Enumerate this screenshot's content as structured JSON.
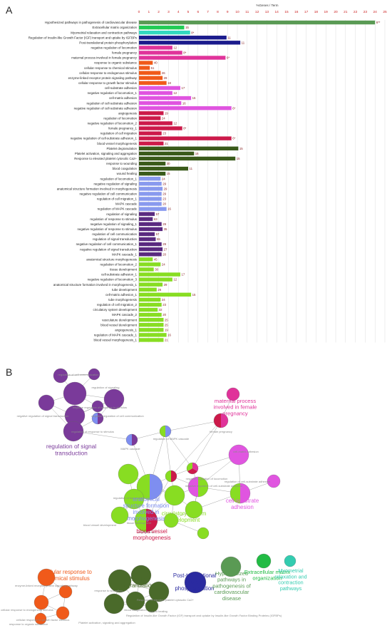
{
  "panel_a_label": "A",
  "panel_b_label": "B",
  "chart_data": {
    "type": "bar",
    "orientation": "horizontal",
    "xlabel": "%Genes / Term",
    "xlim": [
      0,
      25
    ],
    "xticks": [
      0,
      1,
      2,
      3,
      4,
      5,
      6,
      7,
      8,
      9,
      10,
      11,
      12,
      13,
      14,
      15,
      16,
      17,
      18,
      19,
      20,
      21,
      22,
      23,
      24,
      25
    ],
    "grid": true,
    "bars": [
      {
        "label": "Hypothesized pathways in pathogenesis of cardiovascular disease",
        "value": 24,
        "count": "6**",
        "color": "#5a9a54"
      },
      {
        "label": "Extracellular matrix organization",
        "value": 4.6,
        "count": "15",
        "color": "#22cc55"
      },
      {
        "label": "Myometrial relaxation and contraction pathways",
        "value": 5.2,
        "count": "8*",
        "color": "#33d9c0"
      },
      {
        "label": "Regulation of Insulin-like Growth Factor (IGF) transport and uptake by IGFBPs",
        "value": 8.9,
        "count": "11",
        "color": "#1a1a8c"
      },
      {
        "label": "Post-translational protein phosphorylation",
        "value": 10.3,
        "count": "11",
        "color": "#1a1a8c"
      },
      {
        "label": "negative regulation of locomotion",
        "value": 3.4,
        "count": "12",
        "color": "#e0339a"
      },
      {
        "label": "female pregnancy",
        "value": 4.4,
        "count": "8*",
        "color": "#e0339a"
      },
      {
        "label": "maternal process involved in female pregnancy",
        "value": 8.8,
        "count": "6*",
        "color": "#e0339a"
      },
      {
        "label": "response to organic substance",
        "value": 1.4,
        "count": "40",
        "color": "#f05a1a"
      },
      {
        "label": "cellular response to chemical stimulus",
        "value": 1.1,
        "count": "51",
        "color": "#f05a1a"
      },
      {
        "label": "cellular response to endogenous stimulus",
        "value": 2.2,
        "count": "26",
        "color": "#f05a1a"
      },
      {
        "label": "enzyme-linked receptor protein signaling pathway",
        "value": 2.4,
        "count": "29",
        "color": "#f05a1a"
      },
      {
        "label": "cellular response to growth factor stimulus",
        "value": 2.8,
        "count": "18",
        "color": "#f05a1a"
      },
      {
        "label": "cell-substrate adhesion",
        "value": 4.2,
        "count": "17",
        "color": "#e055e0"
      },
      {
        "label": "negative regulation of locomotion_1",
        "value": 3.4,
        "count": "12",
        "color": "#e055e0"
      },
      {
        "label": "cell-matrix adhesion",
        "value": 5.3,
        "count": "15",
        "color": "#e055e0"
      },
      {
        "label": "regulation of cell-substrate adhesion",
        "value": 4.3,
        "count": "16",
        "color": "#e055e0"
      },
      {
        "label": "negative regulation of cell-substrate adhesion",
        "value": 9.4,
        "count": "6*",
        "color": "#e055e0"
      },
      {
        "label": "angiogenesis",
        "value": 2.5,
        "count": "19",
        "color": "#cc1a4a"
      },
      {
        "label": "regulation of locomotion",
        "value": 2.2,
        "count": "24",
        "color": "#cc1a4a"
      },
      {
        "label": "negative regulation of locomotion_2",
        "value": 3.4,
        "count": "12",
        "color": "#cc1a4a"
      },
      {
        "label": "female pregnancy_1",
        "value": 4.4,
        "count": "8*",
        "color": "#cc1a4a"
      },
      {
        "label": "regulation of cell migration",
        "value": 2.3,
        "count": "23",
        "color": "#cc1a4a"
      },
      {
        "label": "negative regulation of cell-substrate adhesion_1",
        "value": 9.4,
        "count": "6*",
        "color": "#cc1a4a"
      },
      {
        "label": "blood vessel morphogenesis",
        "value": 2.5,
        "count": "21",
        "color": "#cc1a4a"
      },
      {
        "label": "Platelet degranulation",
        "value": 10.1,
        "count": "15",
        "color": "#3a5a1a"
      },
      {
        "label": "Platelet activation, signaling and aggregation",
        "value": 5.6,
        "count": "16",
        "color": "#3a5a1a"
      },
      {
        "label": "Response to elevated platelet cytosolic Ca2+",
        "value": 9.8,
        "count": "15",
        "color": "#3a5a1a"
      },
      {
        "label": "response to wounding",
        "value": 2.7,
        "count": "30",
        "color": "#3a5a1a"
      },
      {
        "label": "blood coagulation",
        "value": 5.0,
        "count": "11",
        "color": "#3a5a1a"
      },
      {
        "label": "wound healing",
        "value": 2.7,
        "count": "15",
        "color": "#3a5a1a"
      },
      {
        "label": "regulation of locomotion_1",
        "value": 2.2,
        "count": "24",
        "color": "#8899ee"
      },
      {
        "label": "negative regulation of signaling",
        "value": 2.3,
        "count": "29",
        "color": "#8899ee"
      },
      {
        "label": "anatomical structure formation involved in morphogenesis",
        "value": 2.4,
        "count": "29",
        "color": "#8899ee"
      },
      {
        "label": "negative regulation of cell communication",
        "value": 2.3,
        "count": "29",
        "color": "#8899ee"
      },
      {
        "label": "regulation of cell migration_1",
        "value": 2.3,
        "count": "23",
        "color": "#8899ee"
      },
      {
        "label": "MAPK cascade",
        "value": 2.3,
        "count": "20",
        "color": "#8899ee"
      },
      {
        "label": "regulation of MAPK cascade",
        "value": 2.8,
        "count": "16",
        "color": "#8899ee"
      },
      {
        "label": "regulation of signaling",
        "value": 1.6,
        "count": "57",
        "color": "#5a2a80"
      },
      {
        "label": "regulation of response to stimulus",
        "value": 1.4,
        "count": "63",
        "color": "#5a2a80"
      },
      {
        "label": "negative regulation of signaling_1",
        "value": 2.3,
        "count": "29",
        "color": "#5a2a80"
      },
      {
        "label": "negative regulation of response to stimulus",
        "value": 2.4,
        "count": "35",
        "color": "#5a2a80"
      },
      {
        "label": "regulation of cell communication",
        "value": 1.6,
        "count": "57",
        "color": "#5a2a80"
      },
      {
        "label": "regulation of signal transduction",
        "value": 1.7,
        "count": "55",
        "color": "#5a2a80"
      },
      {
        "label": "negative regulation of cell communication_1",
        "value": 2.3,
        "count": "29",
        "color": "#5a2a80"
      },
      {
        "label": "negative regulation of signal transduction",
        "value": 2.4,
        "count": "27",
        "color": "#5a2a80"
      },
      {
        "label": "MAPK cascade_1",
        "value": 2.3,
        "count": "20",
        "color": "#5a2a80"
      },
      {
        "label": "anatomical structure morphogenesis",
        "value": 1.4,
        "count": "45",
        "color": "#88dd22"
      },
      {
        "label": "regulation of locomotion_2",
        "value": 2.2,
        "count": "24",
        "color": "#88dd22"
      },
      {
        "label": "tissue development",
        "value": 1.5,
        "count": "30",
        "color": "#88dd22"
      },
      {
        "label": "cell-substrate adhesion_1",
        "value": 4.2,
        "count": "17",
        "color": "#88dd22"
      },
      {
        "label": "negative regulation of locomotion_3",
        "value": 3.4,
        "count": "12",
        "color": "#88dd22"
      },
      {
        "label": "anatomical structure formation involved in morphogenesis_1",
        "value": 2.4,
        "count": "29",
        "color": "#88dd22"
      },
      {
        "label": "tube development",
        "value": 1.8,
        "count": "26",
        "color": "#88dd22"
      },
      {
        "label": "cell-matrix adhesion_1",
        "value": 5.3,
        "count": "15",
        "color": "#88dd22"
      },
      {
        "label": "tube morphogenesis",
        "value": 2.2,
        "count": "24",
        "color": "#88dd22"
      },
      {
        "label": "regulation of cell migration_2",
        "value": 2.3,
        "count": "23",
        "color": "#88dd22"
      },
      {
        "label": "circulatory system development",
        "value": 1.9,
        "count": "32",
        "color": "#88dd22"
      },
      {
        "label": "MAPK cascade_2",
        "value": 2.3,
        "count": "20",
        "color": "#88dd22"
      },
      {
        "label": "vasculature development",
        "value": 2.5,
        "count": "25",
        "color": "#88dd22"
      },
      {
        "label": "blood vessel development",
        "value": 2.5,
        "count": "25",
        "color": "#88dd22"
      },
      {
        "label": "angiogenesis_1",
        "value": 2.5,
        "count": "19",
        "color": "#88dd22"
      },
      {
        "label": "regulation of MAPK cascade_1",
        "value": 2.8,
        "count": "16",
        "color": "#88dd22"
      },
      {
        "label": "blood vessel morphogenesis_1",
        "value": 2.5,
        "count": "21",
        "color": "#88dd22"
      }
    ]
  },
  "network": {
    "clusters": [
      {
        "label": "regulation of signal\ntransduction",
        "color": "#7a3a9a"
      },
      {
        "label": "maternal process\ninvolved in female\npregnancy",
        "color": "#e0339a"
      },
      {
        "label": "anatomical\nstructure formation\ninvolved in\nmorphogenesis",
        "color": "#7e8ef0"
      },
      {
        "label": "circulatory system\ndevelopment",
        "color": "#88dd22"
      },
      {
        "label": "blood vessel\nmorphogenesis",
        "color": "#cc1a4a"
      },
      {
        "label": "cell-substrate\nadhesion",
        "color": "#e055e0"
      },
      {
        "label": "cellular response to\nchemical stimulus",
        "color": "#f05a1a"
      },
      {
        "label": "Platelet\ndegranulation",
        "color": "#4a6a2a"
      },
      {
        "label": "Post-translational\nprotein\nphosphorylation",
        "color": "#2a2aa0"
      },
      {
        "label": "Hypothesized\npathways in\npathogenesis of\ncardiovascular\ndisease",
        "color": "#5a9a54"
      },
      {
        "label": "Extracellular matrix\norganization",
        "color": "#22bb44"
      },
      {
        "label": "Myometrial\nrelaxation and\ncontraction\npathways",
        "color": "#33ccb0"
      }
    ],
    "node_labels": [
      "regulation of cell communication",
      "negative regulation of signal transduction",
      "regulation of signaling",
      "negative regulation of response to stimulus",
      "negative regulation of cell communication",
      "negative regulation of signaling",
      "regulation of response to stimulus",
      "MAPK cascade",
      "regulation of MAPK cascade",
      "female pregnancy",
      "regulation of locomotion",
      "negative regulation of locomotion",
      "cell-matrix adhesion",
      "negative regulation of cell-substrate adhesion",
      "regulation of cell-substrate adhesion",
      "tissue development",
      "blood vessel development",
      "angiogenesis",
      "enzyme-linked receptor protein signaling pathway",
      "cellular response to endogenous stimulus",
      "cellular response to growth factor stimulus",
      "response to organic substance",
      "blood coagulation",
      "response to wounding",
      "Response to elevated platelet cytosolic Ca2+",
      "Platelet activation, signaling and aggregation",
      "wound healing",
      "Regulation of Insulin-like Growth Factor (IGF) transport and uptake by Insulin-like Growth Factor Binding Proteins (IGFBPs)"
    ]
  }
}
